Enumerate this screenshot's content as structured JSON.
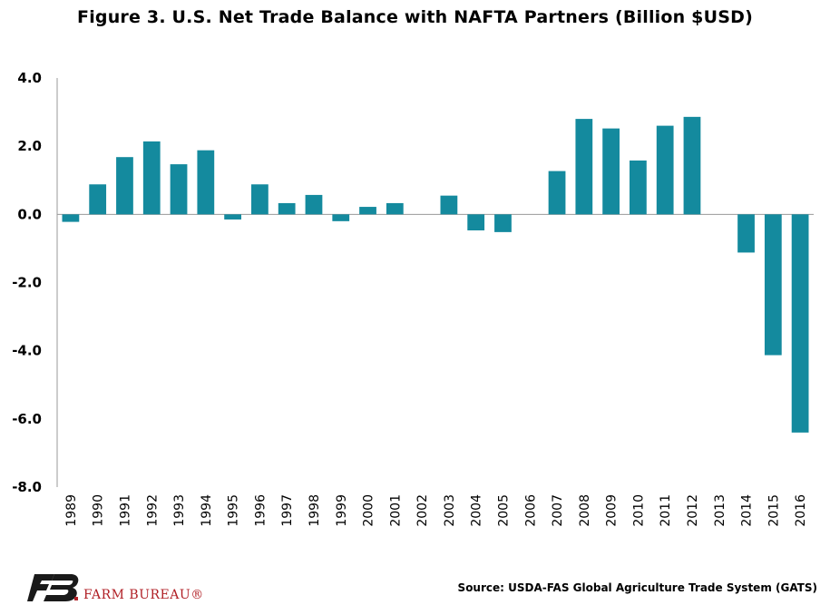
{
  "chart_data": {
    "type": "bar",
    "title": "Figure 3. U.S. Net Trade Balance with NAFTA Partners (Billion $USD)",
    "categories": [
      "1989",
      "1990",
      "1991",
      "1992",
      "1993",
      "1994",
      "1995",
      "1996",
      "1997",
      "1998",
      "1999",
      "2000",
      "2001",
      "2002",
      "2003",
      "2004",
      "2005",
      "2006",
      "2007",
      "2008",
      "2009",
      "2010",
      "2011",
      "2012",
      "2013",
      "2014",
      "2015",
      "2016"
    ],
    "values": [
      -0.22,
      0.88,
      1.68,
      2.14,
      1.47,
      1.88,
      -0.15,
      0.88,
      0.33,
      0.57,
      -0.2,
      0.22,
      0.33,
      0.0,
      0.55,
      -0.47,
      -0.52,
      0.0,
      1.27,
      2.8,
      2.52,
      1.58,
      2.6,
      2.86,
      0.0,
      -1.12,
      -4.13,
      -6.4
    ],
    "ylim": [
      -8,
      4
    ],
    "yticks": [
      "4.0",
      "2.0",
      "0.0",
      "-2.0",
      "-4.0",
      "-6.0",
      "-8.0"
    ],
    "ytick_values": [
      4,
      2,
      0,
      -2,
      -4,
      -6,
      -8
    ],
    "bar_color": "#148a9e",
    "grid": false,
    "legend": "none"
  },
  "source": "Source: USDA-FAS Global Agriculture Trade System (GATS)",
  "logo": {
    "text": "FARM BUREAU®",
    "icon": "farm-bureau-logo-icon",
    "colors": {
      "mark": "#1a1a1a",
      "text": "#b01e24"
    }
  }
}
